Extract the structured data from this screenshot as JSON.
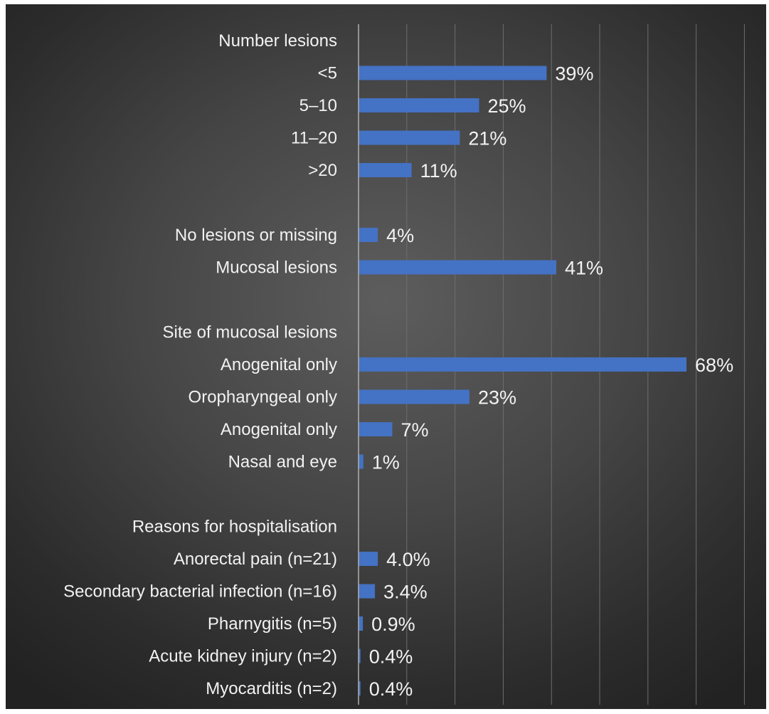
{
  "chart_data": {
    "type": "bar",
    "orientation": "horizontal",
    "title": "",
    "xlabel": "",
    "ylabel": "",
    "xlim": [
      0,
      80
    ],
    "grid": true,
    "legend": "none",
    "bar_color": "#4472c4",
    "categories": [
      "Number lesions",
      "<5",
      "5–10",
      "11–20",
      ">20",
      "",
      "No lesions or missing",
      "Mucosal lesions",
      "",
      "Site of mucosal lesions",
      "Anogenital only",
      "Oropharyngeal only",
      "Anogenital only",
      "Nasal and eye",
      "",
      "Reasons for hospitalisation",
      "Anorectal pain (n=21)",
      "Secondary bacterial infection (n=16)",
      "Pharnygitis (n=5)",
      "Acute kidney injury (n=2)",
      "Myocarditis (n=2)"
    ],
    "values": [
      null,
      39,
      25,
      21,
      11,
      null,
      4,
      41,
      null,
      null,
      68,
      23,
      7,
      1,
      null,
      null,
      4.0,
      3.4,
      0.9,
      0.4,
      0.4
    ],
    "data_labels": [
      "",
      "39%",
      "25%",
      "21%",
      "11%",
      "",
      "4%",
      "41%",
      "",
      "",
      "68%",
      "23%",
      "7%",
      "1%",
      "",
      "",
      "4.0%",
      "3.4%",
      "0.9%",
      "0.4%",
      "0.4%"
    ]
  }
}
